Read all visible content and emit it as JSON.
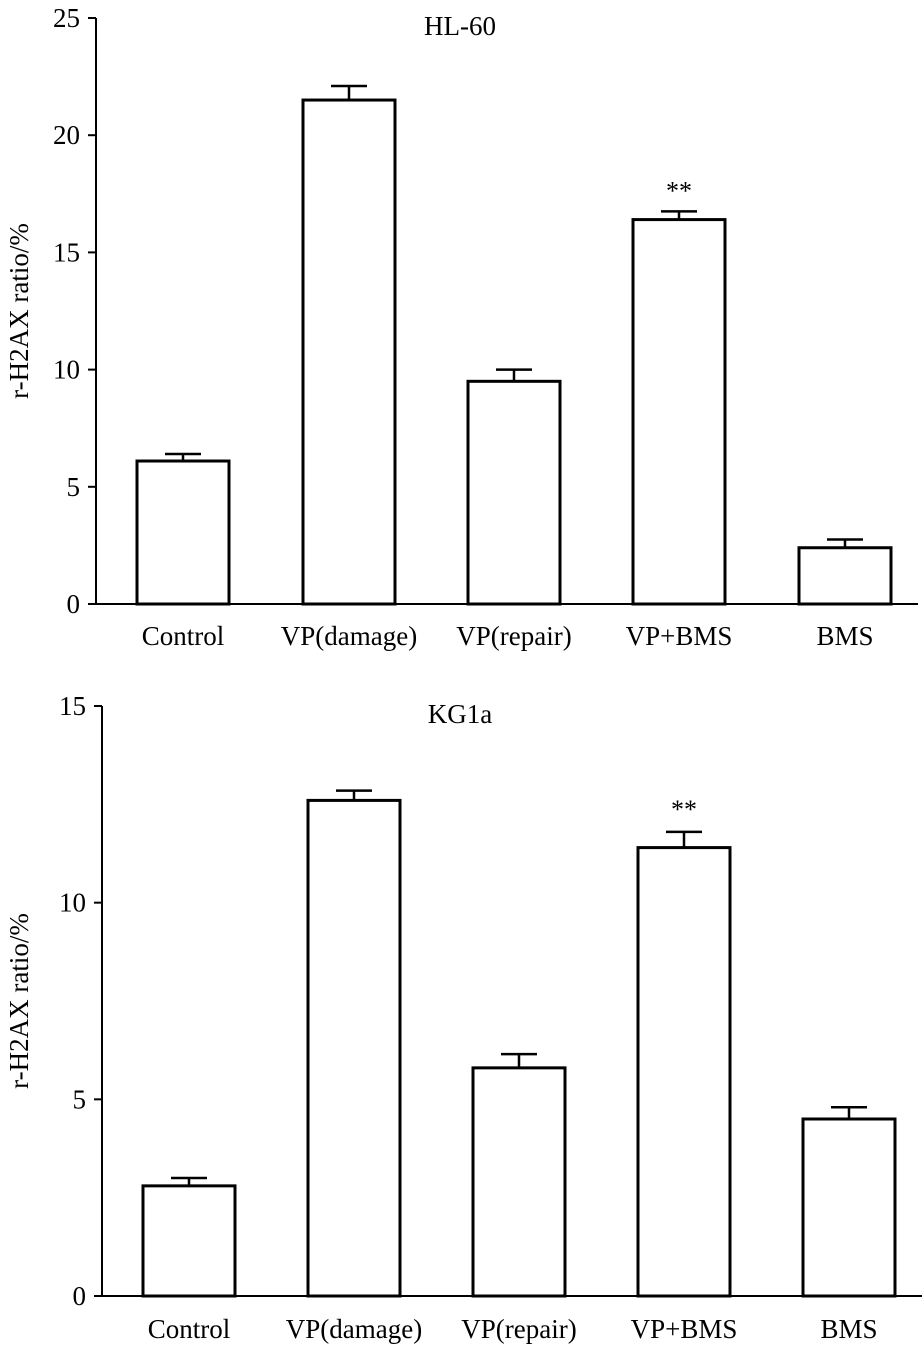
{
  "chart_data": [
    {
      "type": "bar",
      "title": "HL-60",
      "ylabel": "r-H2AX ratio/%",
      "xlabel": "",
      "ylim": [
        0,
        25
      ],
      "yticks": [
        0,
        5,
        10,
        15,
        20,
        25
      ],
      "ytick_labels": [
        "0",
        "5",
        "10",
        "15",
        "20",
        "25"
      ],
      "categories": [
        "Control",
        "VP(damage)",
        "VP(repair)",
        "VP+BMS",
        "BMS"
      ],
      "values": [
        6.1,
        21.5,
        9.5,
        16.4,
        2.4
      ],
      "errors": [
        0.3,
        0.6,
        0.5,
        0.35,
        0.35
      ],
      "annotations": [
        {
          "category": "VP+BMS",
          "text": "**"
        }
      ],
      "grid": false,
      "colors": {
        "bar_fill": "#ffffff",
        "bar_stroke": "#000000"
      }
    },
    {
      "type": "bar",
      "title": "KG1a",
      "ylabel": "r-H2AX ratio/%",
      "xlabel": "",
      "ylim": [
        0,
        15
      ],
      "yticks": [
        0,
        5,
        10,
        15
      ],
      "ytick_labels": [
        "0",
        "5",
        "10",
        "15"
      ],
      "categories": [
        "Control",
        "VP(damage)",
        "VP(repair)",
        "VP+BMS",
        "BMS"
      ],
      "values": [
        2.8,
        12.6,
        5.8,
        11.4,
        4.5
      ],
      "errors": [
        0.2,
        0.25,
        0.35,
        0.4,
        0.3
      ],
      "annotations": [
        {
          "category": "VP+BMS",
          "text": "**"
        }
      ],
      "grid": false,
      "colors": {
        "bar_fill": "#ffffff",
        "bar_stroke": "#000000"
      }
    }
  ]
}
